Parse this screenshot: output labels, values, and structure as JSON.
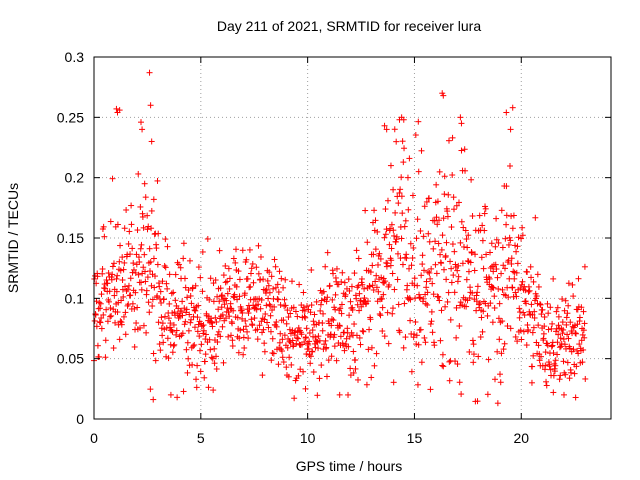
{
  "chart_data": {
    "type": "scatter",
    "title": "Day 211 of 2021, SRMTID for receiver lura",
    "xlabel": "GPS time / hours",
    "ylabel": "SRMTID / TECUs",
    "xlim": [
      0,
      24.2
    ],
    "ylim": [
      0,
      0.3
    ],
    "x_ticks": [
      "0",
      "5",
      "10",
      "15",
      "20"
    ],
    "y_ticks": [
      "0",
      "0.05",
      "0.1",
      "0.15",
      "0.2",
      "0.25",
      "0.3"
    ],
    "grid": true,
    "marker": "+",
    "color": "#ff0000",
    "x_range": [
      0,
      23
    ],
    "sample_step_hours": 0.0167,
    "trend": [
      [
        0.0,
        0.085
      ],
      [
        0.5,
        0.105
      ],
      [
        1.0,
        0.11
      ],
      [
        1.5,
        0.115
      ],
      [
        2.0,
        0.12
      ],
      [
        2.5,
        0.125
      ],
      [
        3.0,
        0.105
      ],
      [
        3.5,
        0.08
      ],
      [
        4.0,
        0.085
      ],
      [
        5.0,
        0.075
      ],
      [
        6.0,
        0.09
      ],
      [
        7.0,
        0.095
      ],
      [
        8.0,
        0.09
      ],
      [
        9.0,
        0.07
      ],
      [
        10.0,
        0.065
      ],
      [
        11.0,
        0.085
      ],
      [
        12.0,
        0.085
      ],
      [
        13.0,
        0.105
      ],
      [
        13.5,
        0.12
      ],
      [
        14.0,
        0.13
      ],
      [
        14.5,
        0.135
      ],
      [
        15.0,
        0.11
      ],
      [
        15.5,
        0.105
      ],
      [
        16.0,
        0.12
      ],
      [
        16.5,
        0.13
      ],
      [
        17.0,
        0.125
      ],
      [
        17.5,
        0.12
      ],
      [
        18.0,
        0.11
      ],
      [
        18.5,
        0.1
      ],
      [
        19.0,
        0.11
      ],
      [
        19.5,
        0.125
      ],
      [
        20.0,
        0.1
      ],
      [
        20.5,
        0.085
      ],
      [
        21.0,
        0.07
      ],
      [
        22.0,
        0.065
      ],
      [
        23.0,
        0.075
      ]
    ],
    "spread": [
      [
        0.0,
        0.028
      ],
      [
        2.5,
        0.035
      ],
      [
        3.5,
        0.025
      ],
      [
        9.0,
        0.022
      ],
      [
        12.0,
        0.025
      ],
      [
        13.5,
        0.035
      ],
      [
        14.5,
        0.045
      ],
      [
        16.5,
        0.045
      ],
      [
        19.5,
        0.04
      ],
      [
        21.0,
        0.022
      ],
      [
        23.0,
        0.02
      ]
    ],
    "peaks": [
      [
        1.05,
        0.257
      ],
      [
        1.1,
        0.254
      ],
      [
        1.2,
        0.256
      ],
      [
        2.2,
        0.246
      ],
      [
        2.25,
        0.24
      ],
      [
        2.6,
        0.287
      ],
      [
        2.65,
        0.26
      ],
      [
        2.7,
        0.23
      ],
      [
        2.8,
        0.182
      ],
      [
        3.6,
        0.02
      ],
      [
        9.9,
        0.025
      ],
      [
        11.5,
        0.02
      ],
      [
        13.6,
        0.243
      ],
      [
        13.7,
        0.24
      ],
      [
        14.3,
        0.248
      ],
      [
        14.4,
        0.25
      ],
      [
        14.5,
        0.248
      ],
      [
        16.3,
        0.27
      ],
      [
        16.35,
        0.268
      ],
      [
        17.15,
        0.25
      ],
      [
        17.2,
        0.245
      ],
      [
        19.3,
        0.254
      ],
      [
        19.6,
        0.258
      ],
      [
        19.5,
        0.24
      ],
      [
        20.5,
        0.03
      ],
      [
        21.5,
        0.022
      ],
      [
        22.0,
        0.02
      ],
      [
        14.0,
        0.19
      ],
      [
        15.2,
        0.205
      ],
      [
        13.9,
        0.21
      ]
    ]
  }
}
